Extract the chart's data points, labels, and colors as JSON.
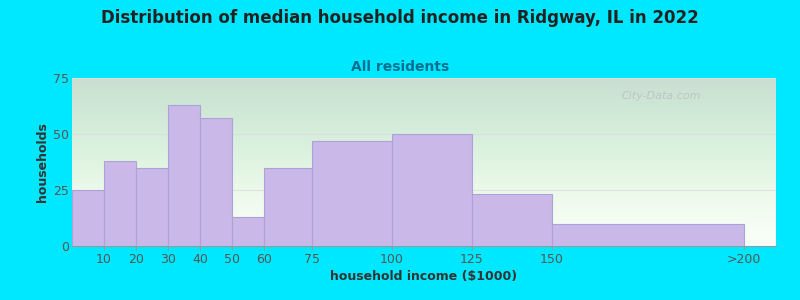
{
  "title": "Distribution of median household income in Ridgway, IL in 2022",
  "subtitle": "All residents",
  "xlabel": "household income ($1000)",
  "ylabel": "households",
  "bar_left_edges": [
    0,
    10,
    20,
    30,
    40,
    50,
    60,
    75,
    100,
    125,
    150
  ],
  "bar_widths": [
    10,
    10,
    10,
    10,
    10,
    10,
    15,
    25,
    25,
    25,
    60
  ],
  "values": [
    25,
    38,
    35,
    63,
    57,
    13,
    35,
    47,
    50,
    23,
    10
  ],
  "xtick_positions": [
    10,
    20,
    30,
    40,
    50,
    60,
    75,
    100,
    125,
    150,
    210
  ],
  "xtick_labels": [
    "10",
    "20",
    "30",
    "40",
    "50",
    "60",
    "75",
    "100",
    "125",
    "150",
    ">200"
  ],
  "bar_color": "#c9b8e8",
  "bar_edge_color": "#b0a0d8",
  "background_outer": "#00e8ff",
  "title_color": "#222222",
  "subtitle_color": "#007090",
  "axis_label_color": "#333333",
  "tick_color": "#555555",
  "xlim": [
    0,
    220
  ],
  "ylim": [
    0,
    75
  ],
  "yticks": [
    0,
    25,
    50,
    75
  ],
  "watermark_text": "City-Data.com",
  "title_fontsize": 12,
  "subtitle_fontsize": 10,
  "label_fontsize": 9,
  "tick_fontsize": 9
}
